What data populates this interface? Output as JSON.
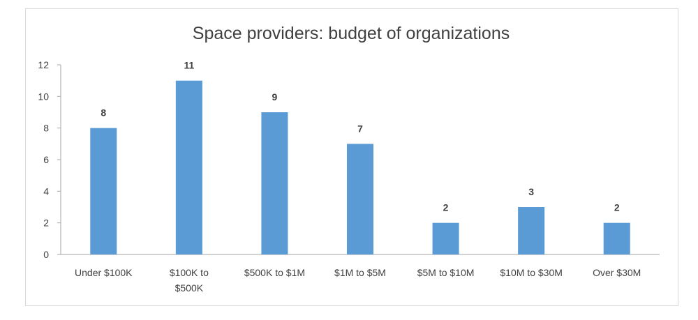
{
  "chart_data": {
    "type": "bar",
    "title": "Space providers: budget of organizations",
    "xlabel": "",
    "ylabel": "",
    "categories": [
      [
        "Under $100K"
      ],
      [
        "$100K to",
        "$500K"
      ],
      [
        "$500K to $1M"
      ],
      [
        "$1M to $5M"
      ],
      [
        "$5M to $10M"
      ],
      [
        "$10M to $30M"
      ],
      [
        "Over $30M"
      ]
    ],
    "values": [
      8,
      11,
      9,
      7,
      2,
      3,
      2
    ],
    "ylim": [
      0,
      12
    ],
    "yticks": [
      0,
      2,
      4,
      6,
      8,
      10,
      12
    ],
    "grid": false,
    "legend": "none",
    "bar_color": "#5b9bd5",
    "data_labels": true
  }
}
